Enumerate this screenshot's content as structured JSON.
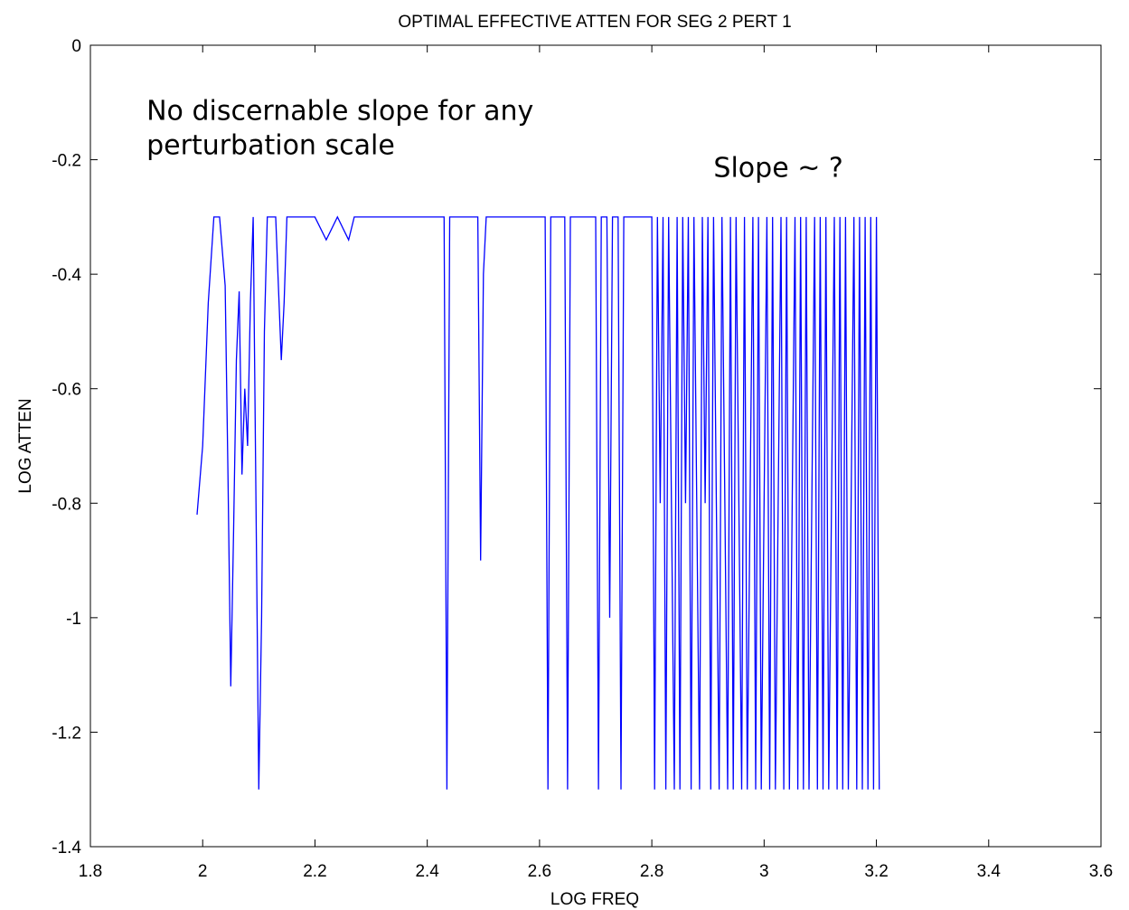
{
  "chart_data": {
    "type": "line",
    "title": "OPTIMAL EFFECTIVE ATTEN FOR SEG 2 PERT 1",
    "xlabel": "LOG FREQ",
    "ylabel": "LOG ATTEN",
    "xlim": [
      1.8,
      3.6
    ],
    "ylim": [
      -1.4,
      0
    ],
    "xticks": [
      1.8,
      2,
      2.2,
      2.4,
      2.6,
      2.8,
      3,
      3.2,
      3.4,
      3.6
    ],
    "xtick_labels": [
      "1.8",
      "2",
      "2.2",
      "2.4",
      "2.6",
      "2.8",
      "3",
      "3.2",
      "3.4",
      "3.6"
    ],
    "yticks": [
      0,
      -0.2,
      -0.4,
      -0.6,
      -0.8,
      -1,
      -1.2,
      -1.4
    ],
    "ytick_labels": [
      "0",
      "-0.2",
      "-0.4",
      "-0.6",
      "-0.8",
      "-1",
      "-1.2",
      "-1.4"
    ],
    "grid": false,
    "line_color": "#0000ff",
    "annotations": [
      {
        "lines": [
          "No discernable slope for any",
          "perturbation scale"
        ],
        "x": 1.9,
        "y": -0.13
      },
      {
        "lines": [
          "Slope ~ ?"
        ],
        "x": 2.91,
        "y": -0.23
      }
    ],
    "series": [
      {
        "x": [
          1.99,
          2.0,
          2.01,
          2.02,
          2.025,
          2.03,
          2.04,
          2.045,
          2.05,
          2.055,
          2.06,
          2.065,
          2.07,
          2.075,
          2.08,
          2.085,
          2.09,
          2.095,
          2.1,
          2.105,
          2.11,
          2.115,
          2.12,
          2.13,
          2.14,
          2.145,
          2.15,
          2.155,
          2.16,
          2.18,
          2.2,
          2.22,
          2.24,
          2.26,
          2.27,
          2.28,
          2.3,
          2.35,
          2.43,
          2.435,
          2.44,
          2.445,
          2.45,
          2.49,
          2.495,
          2.5,
          2.505,
          2.61,
          2.615,
          2.62,
          2.645,
          2.65,
          2.655,
          2.7,
          2.705,
          2.71,
          2.72,
          2.725,
          2.73,
          2.74,
          2.745,
          2.75,
          2.755,
          2.8,
          2.805,
          2.81,
          2.815,
          2.82,
          2.825,
          2.83,
          2.835,
          2.84,
          2.845,
          2.85,
          2.855,
          2.86,
          2.865,
          2.87,
          2.875,
          2.88,
          2.885,
          2.89,
          2.895,
          2.9,
          2.905,
          2.91,
          2.915,
          2.92,
          2.925,
          2.93,
          2.935,
          2.94,
          2.945,
          2.95,
          2.955,
          2.96,
          2.965,
          2.97,
          2.975,
          2.98,
          2.985,
          2.99,
          2.995,
          3.0,
          3.005,
          3.01,
          3.015,
          3.02,
          3.025,
          3.03,
          3.035,
          3.04,
          3.045,
          3.05,
          3.055,
          3.06,
          3.065,
          3.07,
          3.075,
          3.08,
          3.085,
          3.09,
          3.095,
          3.1,
          3.105,
          3.11,
          3.115,
          3.12,
          3.125,
          3.13,
          3.135,
          3.14,
          3.145,
          3.15,
          3.155,
          3.16,
          3.165,
          3.17,
          3.175,
          3.18,
          3.185,
          3.19,
          3.195,
          3.2,
          3.205
        ],
        "y": [
          -0.82,
          -0.7,
          -0.45,
          -0.3,
          -0.3,
          -0.3,
          -0.42,
          -0.75,
          -1.12,
          -0.85,
          -0.55,
          -0.43,
          -0.75,
          -0.6,
          -0.7,
          -0.45,
          -0.3,
          -0.8,
          -1.3,
          -1.0,
          -0.5,
          -0.3,
          -0.3,
          -0.3,
          -0.55,
          -0.45,
          -0.3,
          -0.3,
          -0.3,
          -0.3,
          -0.3,
          -0.34,
          -0.3,
          -0.34,
          -0.3,
          -0.3,
          -0.3,
          -0.3,
          -0.3,
          -1.3,
          -0.3,
          -0.3,
          -0.3,
          -0.3,
          -0.9,
          -0.4,
          -0.3,
          -0.3,
          -1.3,
          -0.3,
          -0.3,
          -1.3,
          -0.3,
          -0.3,
          -1.3,
          -0.3,
          -0.3,
          -1.0,
          -0.3,
          -0.3,
          -1.3,
          -0.3,
          -0.3,
          -0.3,
          -1.3,
          -0.3,
          -0.8,
          -0.3,
          -1.3,
          -0.3,
          -0.8,
          -1.3,
          -0.3,
          -1.3,
          -0.3,
          -0.8,
          -0.3,
          -1.3,
          -0.3,
          -0.8,
          -1.3,
          -0.3,
          -0.8,
          -0.3,
          -1.3,
          -0.3,
          -0.8,
          -1.3,
          -0.3,
          -0.8,
          -1.3,
          -0.3,
          -1.3,
          -0.3,
          -0.8,
          -1.3,
          -0.3,
          -1.3,
          -0.8,
          -0.3,
          -1.3,
          -0.3,
          -1.3,
          -0.8,
          -0.3,
          -1.3,
          -0.3,
          -1.3,
          -0.8,
          -0.3,
          -1.3,
          -0.3,
          -1.3,
          -0.8,
          -0.3,
          -1.3,
          -0.3,
          -1.3,
          -0.3,
          -1.3,
          -0.8,
          -0.3,
          -1.3,
          -0.3,
          -1.3,
          -0.3,
          -1.3,
          -0.8,
          -0.3,
          -1.3,
          -0.3,
          -1.3,
          -0.3,
          -1.3,
          -0.8,
          -0.3,
          -1.3,
          -0.3,
          -1.3,
          -0.3,
          -1.3,
          -0.3,
          -1.3,
          -0.3,
          -1.3
        ]
      }
    ]
  }
}
